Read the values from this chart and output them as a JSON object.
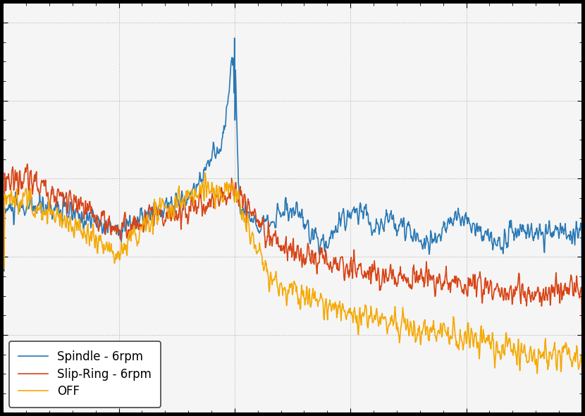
{
  "legend_labels": [
    "Spindle - 6rpm",
    "Slip-Ring - 6rpm",
    "OFF"
  ],
  "colors_line": [
    "#2878b5",
    "#d84315",
    "#f5a800"
  ],
  "linewidths": [
    1.2,
    1.2,
    1.2
  ],
  "plot_bg": "#f5f5f5",
  "outer_bg": "#000000",
  "figsize": [
    8.3,
    5.9
  ],
  "dpi": 100,
  "legend_fontsize": 12,
  "xlim": [
    0,
    250
  ],
  "spike_freq": 100
}
